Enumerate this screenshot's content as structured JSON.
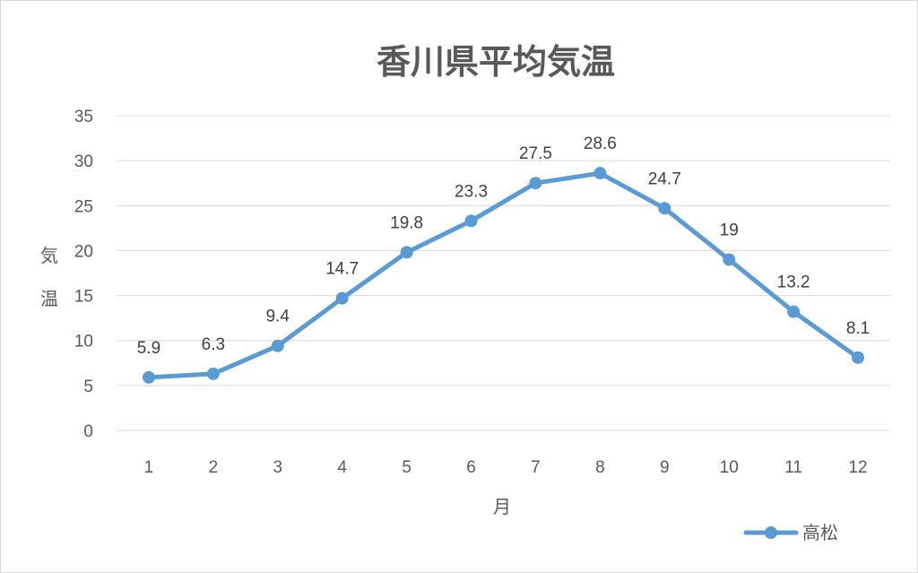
{
  "chart_data": {
    "type": "line",
    "title": "香川県平均気温",
    "xlabel": "月",
    "ylabel": "気温",
    "categories": [
      "1",
      "2",
      "3",
      "4",
      "5",
      "6",
      "7",
      "8",
      "9",
      "10",
      "11",
      "12"
    ],
    "series": [
      {
        "name": "高松",
        "values": [
          5.9,
          6.3,
          9.4,
          14.7,
          19.8,
          23.3,
          27.5,
          28.6,
          24.7,
          19,
          13.2,
          8.1
        ],
        "color": "#5b9bd5"
      }
    ],
    "data_labels": [
      "5.9",
      "6.3",
      "9.4",
      "14.7",
      "19.8",
      "23.3",
      "27.5",
      "28.6",
      "24.7",
      "19",
      "13.2",
      "8.1"
    ],
    "ylim": [
      0,
      35
    ],
    "yticks": [
      0,
      5,
      10,
      15,
      20,
      25,
      30,
      35
    ],
    "grid": true,
    "legend_position": "bottom-right",
    "gridline_color": "#d9d9d9"
  }
}
